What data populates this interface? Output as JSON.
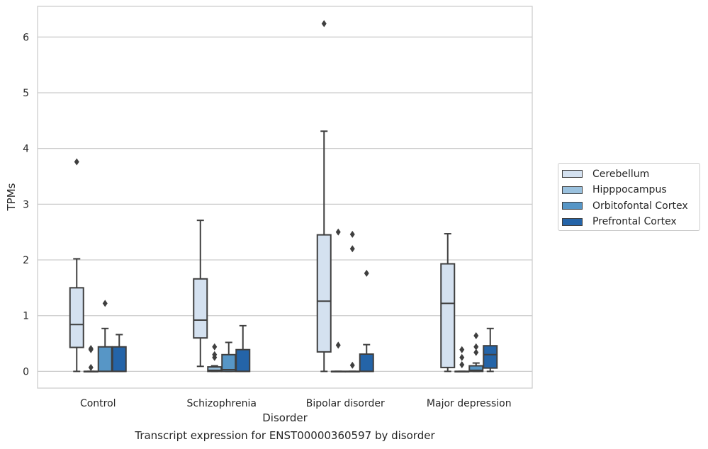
{
  "caption": "Transcript expression for ENST00000360597 by disorder",
  "chart_data": {
    "type": "boxplot",
    "xlabel": "Disorder",
    "ylabel": "TPMs",
    "ylim": [
      -0.3,
      6.55
    ],
    "yticks": [
      0,
      1,
      2,
      3,
      4,
      5,
      6
    ],
    "grid": "horizontal",
    "legend_position": "right",
    "categories": [
      "Control",
      "Schizophrenia",
      "Bipolar disorder",
      "Major depression"
    ],
    "series": [
      {
        "name": "Cerebellum",
        "color": "#d4e1f0",
        "boxes": [
          {
            "whisker_low": 0.0,
            "q1": 0.43,
            "median": 0.84,
            "q3": 1.5,
            "whisker_high": 2.02,
            "outliers": [
              3.76
            ]
          },
          {
            "whisker_low": 0.09,
            "q1": 0.6,
            "median": 0.92,
            "q3": 1.66,
            "whisker_high": 2.71,
            "outliers": []
          },
          {
            "whisker_low": 0.0,
            "q1": 0.35,
            "median": 1.26,
            "q3": 2.45,
            "whisker_high": 4.31,
            "outliers": [
              6.24
            ]
          },
          {
            "whisker_low": 0.0,
            "q1": 0.07,
            "median": 1.22,
            "q3": 1.93,
            "whisker_high": 2.47,
            "outliers": []
          }
        ]
      },
      {
        "name": "Hipppocampus",
        "color": "#9ac1de",
        "boxes": [
          {
            "whisker_low": 0.0,
            "q1": 0.0,
            "median": 0.0,
            "q3": 0.0,
            "whisker_high": 0.0,
            "outliers": [
              0.07,
              0.39,
              0.41
            ]
          },
          {
            "whisker_low": 0.0,
            "q1": 0.0,
            "median": 0.02,
            "q3": 0.08,
            "whisker_high": 0.1,
            "outliers": [
              0.25,
              0.3,
              0.44
            ]
          },
          {
            "whisker_low": 0.0,
            "q1": 0.0,
            "median": 0.0,
            "q3": 0.0,
            "whisker_high": 0.0,
            "outliers": [
              0.47,
              2.5
            ]
          },
          {
            "whisker_low": 0.0,
            "q1": 0.0,
            "median": 0.0,
            "q3": 0.0,
            "whisker_high": 0.0,
            "outliers": [
              0.12,
              0.25,
              0.39
            ]
          }
        ]
      },
      {
        "name": "Orbitofontal Cortex",
        "color": "#5796c6",
        "boxes": [
          {
            "whisker_low": 0.0,
            "q1": 0.0,
            "median": 0.0,
            "q3": 0.44,
            "whisker_high": 0.77,
            "outliers": [
              1.22
            ]
          },
          {
            "whisker_low": 0.0,
            "q1": 0.0,
            "median": 0.03,
            "q3": 0.3,
            "whisker_high": 0.52,
            "outliers": []
          },
          {
            "whisker_low": 0.0,
            "q1": 0.0,
            "median": 0.0,
            "q3": 0.0,
            "whisker_high": 0.0,
            "outliers": [
              0.11,
              2.2,
              2.46
            ]
          },
          {
            "whisker_low": 0.0,
            "q1": 0.0,
            "median": 0.02,
            "q3": 0.1,
            "whisker_high": 0.15,
            "outliers": [
              0.34,
              0.44,
              0.64
            ]
          }
        ]
      },
      {
        "name": "Prefrontal Cortex",
        "color": "#2464a8",
        "boxes": [
          {
            "whisker_low": 0.0,
            "q1": 0.0,
            "median": 0.0,
            "q3": 0.44,
            "whisker_high": 0.66,
            "outliers": []
          },
          {
            "whisker_low": 0.0,
            "q1": 0.0,
            "median": 0.0,
            "q3": 0.39,
            "whisker_high": 0.82,
            "outliers": []
          },
          {
            "whisker_low": 0.0,
            "q1": 0.0,
            "median": 0.0,
            "q3": 0.31,
            "whisker_high": 0.48,
            "outliers": [
              1.76
            ]
          },
          {
            "whisker_low": 0.0,
            "q1": 0.06,
            "median": 0.3,
            "q3": 0.46,
            "whisker_high": 0.77,
            "outliers": []
          }
        ]
      }
    ]
  }
}
